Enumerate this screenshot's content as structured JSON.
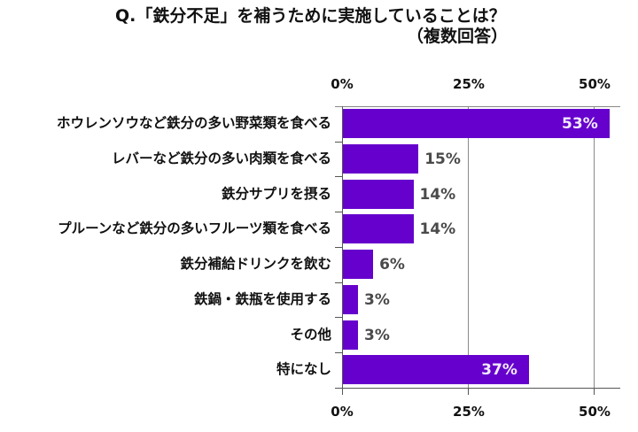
{
  "title": {
    "line1": "Q.「鉄分不足」を補うために実施していることは？",
    "line2": "（複数回答）"
  },
  "axis": {
    "ticks": [
      "0%",
      "25%",
      "50%"
    ]
  },
  "rows": [
    {
      "label": "ホウレンソウなど鉄分の多い野菜類を食べる",
      "value": 53,
      "display": "53%"
    },
    {
      "label": "レバーなど鉄分の多い肉類を食べる",
      "value": 15,
      "display": "15%"
    },
    {
      "label": "鉄分サプリを摂る",
      "value": 14,
      "display": "14%"
    },
    {
      "label": "プルーンなど鉄分の多いフルーツ類を食べる",
      "value": 14,
      "display": "14%"
    },
    {
      "label": "鉄分補給ドリンクを飲む",
      "value": 6,
      "display": "6%"
    },
    {
      "label": "鉄鍋・鉄瓶を使用する",
      "value": 3,
      "display": "3%"
    },
    {
      "label": "その他",
      "value": 3,
      "display": "3%"
    },
    {
      "label": "特になし",
      "value": 37,
      "display": "37%"
    }
  ],
  "colors": {
    "bar": "#6600cc"
  },
  "chart_data": {
    "type": "bar",
    "orientation": "horizontal",
    "title": "Q.「鉄分不足」を補うために実施していることは？（複数回答）",
    "categories": [
      "ホウレンソウなど鉄分の多い野菜類を食べる",
      "レバーなど鉄分の多い肉類を食べる",
      "鉄分サプリを摂る",
      "プルーンなど鉄分の多いフルーツ類を食べる",
      "鉄分補給ドリンクを飲む",
      "鉄鍋・鉄瓶を使用する",
      "その他",
      "特になし"
    ],
    "values": [
      53,
      15,
      14,
      14,
      6,
      3,
      3,
      37
    ],
    "unit": "%",
    "xlabel": "",
    "ylabel": "",
    "xlim": [
      0,
      55
    ],
    "xticks": [
      "0%",
      "25%",
      "50%"
    ],
    "axis_labels_top_and_bottom": true,
    "grid": true,
    "legend": "none",
    "bar_color": "#6600cc"
  }
}
